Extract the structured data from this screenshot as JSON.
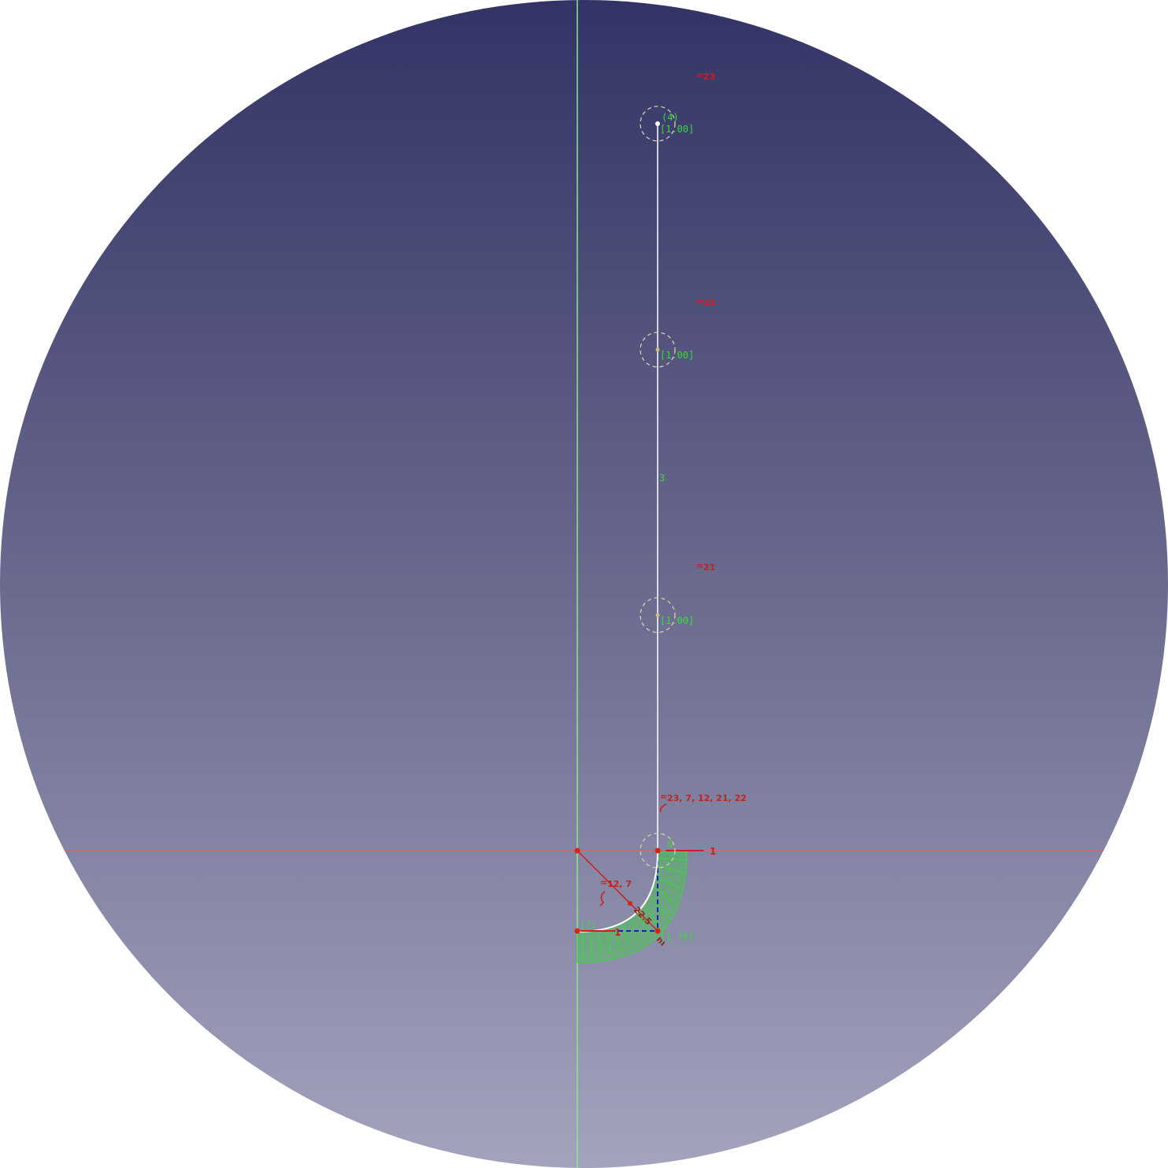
{
  "colors": {
    "axis_x": "#e06060",
    "axis_y": "#7ef07e",
    "geometry": "#ffffff",
    "constraint": "#cc1f1a",
    "label_green": "#33dd33",
    "construction": "#1a1acc",
    "snap_circle": "#d8d0a0"
  },
  "constraints": {
    "eq_23": "23",
    "eq_22": "22",
    "eq_21": "21",
    "eq_group": "23, 7, 12, 21, 22",
    "eq_12_7": "12, 7",
    "radius": "22.5",
    "h_label_top": "1",
    "h_label_bottom": "1"
  },
  "points": {
    "top_id": "(4)",
    "top_weight": "[1.00]",
    "mid1_weight": "[1.00]",
    "mid2_weight": "[1.00]",
    "corner_weight": "[1.75]",
    "pole_id": "(2)"
  },
  "edges": {
    "line_id": "3",
    "arc_id": "6"
  }
}
